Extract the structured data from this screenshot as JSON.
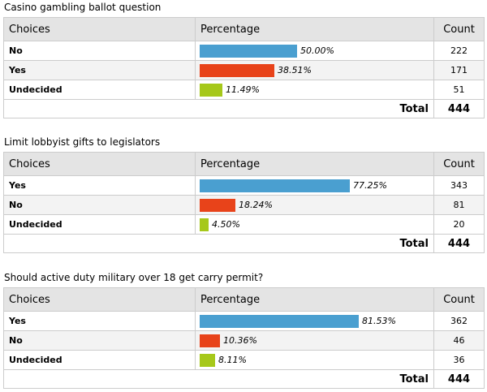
{
  "colors": {
    "blue": "#4a9fd0",
    "red": "#e8431a",
    "green": "#a6c81a"
  },
  "headers": {
    "choices": "Choices",
    "percentage": "Percentage",
    "count": "Count",
    "total": "Total"
  },
  "polls": [
    {
      "title": "Casino gambling ballot question",
      "rows": [
        {
          "choice": "No",
          "percent": 50.0,
          "percent_label": "50.00%",
          "count": "222",
          "color": "#4a9fd0"
        },
        {
          "choice": "Yes",
          "percent": 38.51,
          "percent_label": "38.51%",
          "count": "171",
          "color": "#e8431a"
        },
        {
          "choice": "Undecided",
          "percent": 11.49,
          "percent_label": "11.49%",
          "count": "51",
          "color": "#a6c81a"
        }
      ],
      "total": "444"
    },
    {
      "title": "Limit lobbyist gifts to legislators",
      "rows": [
        {
          "choice": "Yes",
          "percent": 77.25,
          "percent_label": "77.25%",
          "count": "343",
          "color": "#4a9fd0"
        },
        {
          "choice": "No",
          "percent": 18.24,
          "percent_label": "18.24%",
          "count": "81",
          "color": "#e8431a"
        },
        {
          "choice": "Undecided",
          "percent": 4.5,
          "percent_label": "4.50%",
          "count": "20",
          "color": "#a6c81a"
        }
      ],
      "total": "444"
    },
    {
      "title": "Should active duty military over 18 get carry permit?",
      "rows": [
        {
          "choice": "Yes",
          "percent": 81.53,
          "percent_label": "81.53%",
          "count": "362",
          "color": "#4a9fd0"
        },
        {
          "choice": "No",
          "percent": 10.36,
          "percent_label": "10.36%",
          "count": "46",
          "color": "#e8431a"
        },
        {
          "choice": "Undecided",
          "percent": 8.11,
          "percent_label": "8.11%",
          "count": "36",
          "color": "#a6c81a"
        }
      ],
      "total": "444"
    }
  ]
}
